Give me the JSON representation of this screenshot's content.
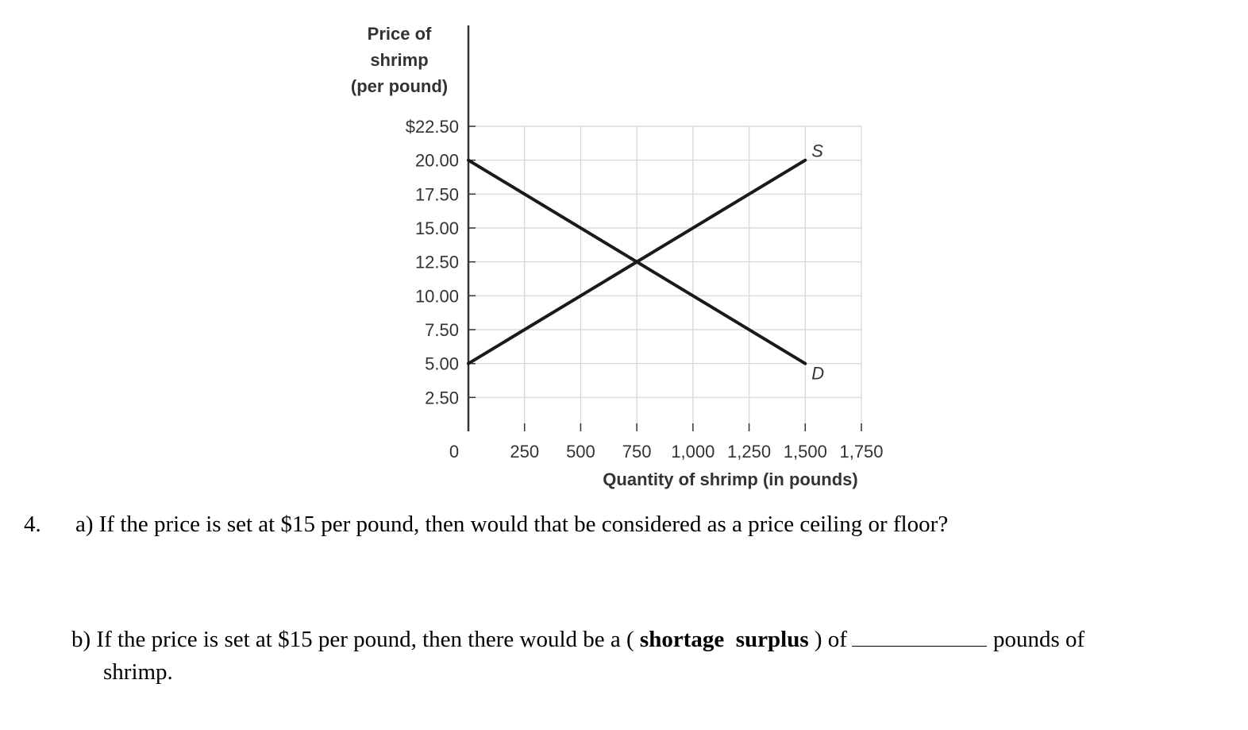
{
  "chart_data": {
    "type": "line",
    "ylabel": [
      "Price of",
      "shrimp",
      "(per pound)"
    ],
    "xlabel": "Quantity of shrimp (in pounds)",
    "xlim": [
      0,
      1750
    ],
    "ylim": [
      0,
      22.5
    ],
    "x_ticks": [
      250,
      500,
      750,
      1000,
      1250,
      1500,
      1750
    ],
    "x_tick_labels": [
      "250",
      "500",
      "750",
      "1,000",
      "1,250",
      "1,500",
      "1,750"
    ],
    "origin_label": "0",
    "y_ticks": [
      2.5,
      5,
      7.5,
      10,
      12.5,
      15,
      17.5,
      20,
      22.5
    ],
    "y_tick_labels": [
      "2.50",
      "5.00",
      "7.50",
      "10.00",
      "12.50",
      "15.00",
      "17.50",
      "20.00",
      "$22.50"
    ],
    "grid": true,
    "series": [
      {
        "name": "S",
        "x": [
          0,
          1500
        ],
        "y": [
          5,
          20
        ]
      },
      {
        "name": "D",
        "x": [
          0,
          1500
        ],
        "y": [
          20,
          5
        ]
      }
    ]
  },
  "question": {
    "number": "4.",
    "part_a": "a) If the price is set at $15 per pound, then would that be considered as a price ceiling or floor?",
    "part_b_prefix": "b) If the price is set at $15 per pound, then there would be a (",
    "option_shortage": "shortage",
    "option_surplus": "surplus",
    "part_b_after_options": ") of",
    "part_b_end": "pounds of",
    "part_b_line2": "shrimp."
  }
}
